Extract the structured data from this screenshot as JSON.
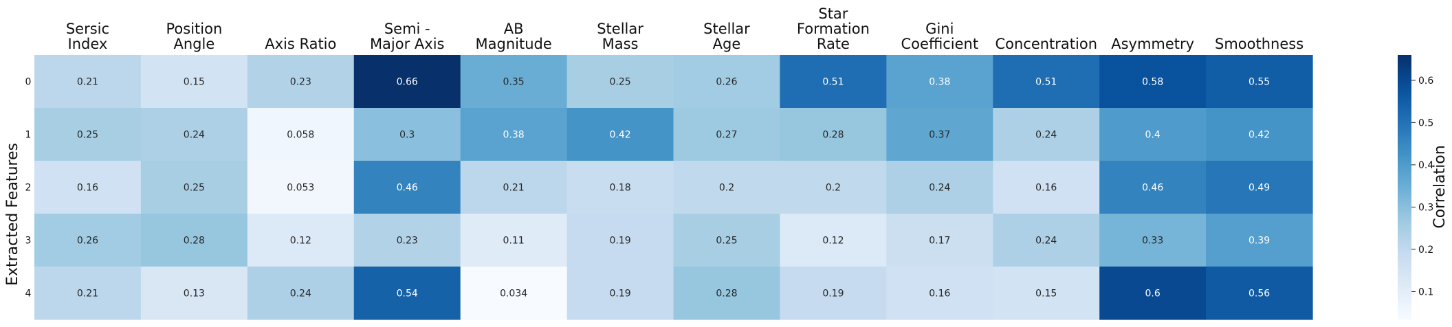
{
  "chart_data": {
    "type": "heatmap",
    "ylabel": "Extracted Features",
    "colorbar_label": "Correlation",
    "colormap": "Blues",
    "color_range": [
      0.034,
      0.66
    ],
    "colorbar_ticks": [
      0.1,
      0.2,
      0.3,
      0.4,
      0.5,
      0.6
    ],
    "columns": [
      [
        "Sersic",
        "Index"
      ],
      [
        "Position",
        "Angle"
      ],
      [
        "Axis Ratio"
      ],
      [
        "Semi -",
        "Major Axis"
      ],
      [
        "AB",
        "Magnitude"
      ],
      [
        "Stellar",
        "Mass"
      ],
      [
        "Stellar",
        "Age"
      ],
      [
        "Star",
        "Formation",
        "Rate"
      ],
      [
        "Gini",
        "Coefficient"
      ],
      [
        "Concentration"
      ],
      [
        "Asymmetry"
      ],
      [
        "Smoothness"
      ]
    ],
    "rows": [
      "0",
      "1",
      "2",
      "3",
      "4"
    ],
    "values": [
      [
        0.21,
        0.15,
        0.23,
        0.66,
        0.35,
        0.25,
        0.26,
        0.51,
        0.38,
        0.51,
        0.58,
        0.55
      ],
      [
        0.25,
        0.24,
        0.058,
        0.3,
        0.38,
        0.42,
        0.27,
        0.28,
        0.37,
        0.24,
        0.4,
        0.42
      ],
      [
        0.16,
        0.25,
        0.053,
        0.46,
        0.21,
        0.18,
        0.2,
        0.2,
        0.24,
        0.16,
        0.46,
        0.49
      ],
      [
        0.26,
        0.28,
        0.12,
        0.23,
        0.11,
        0.19,
        0.25,
        0.12,
        0.17,
        0.24,
        0.33,
        0.39
      ],
      [
        0.21,
        0.13,
        0.24,
        0.54,
        0.034,
        0.19,
        0.28,
        0.19,
        0.16,
        0.15,
        0.6,
        0.56
      ]
    ]
  }
}
